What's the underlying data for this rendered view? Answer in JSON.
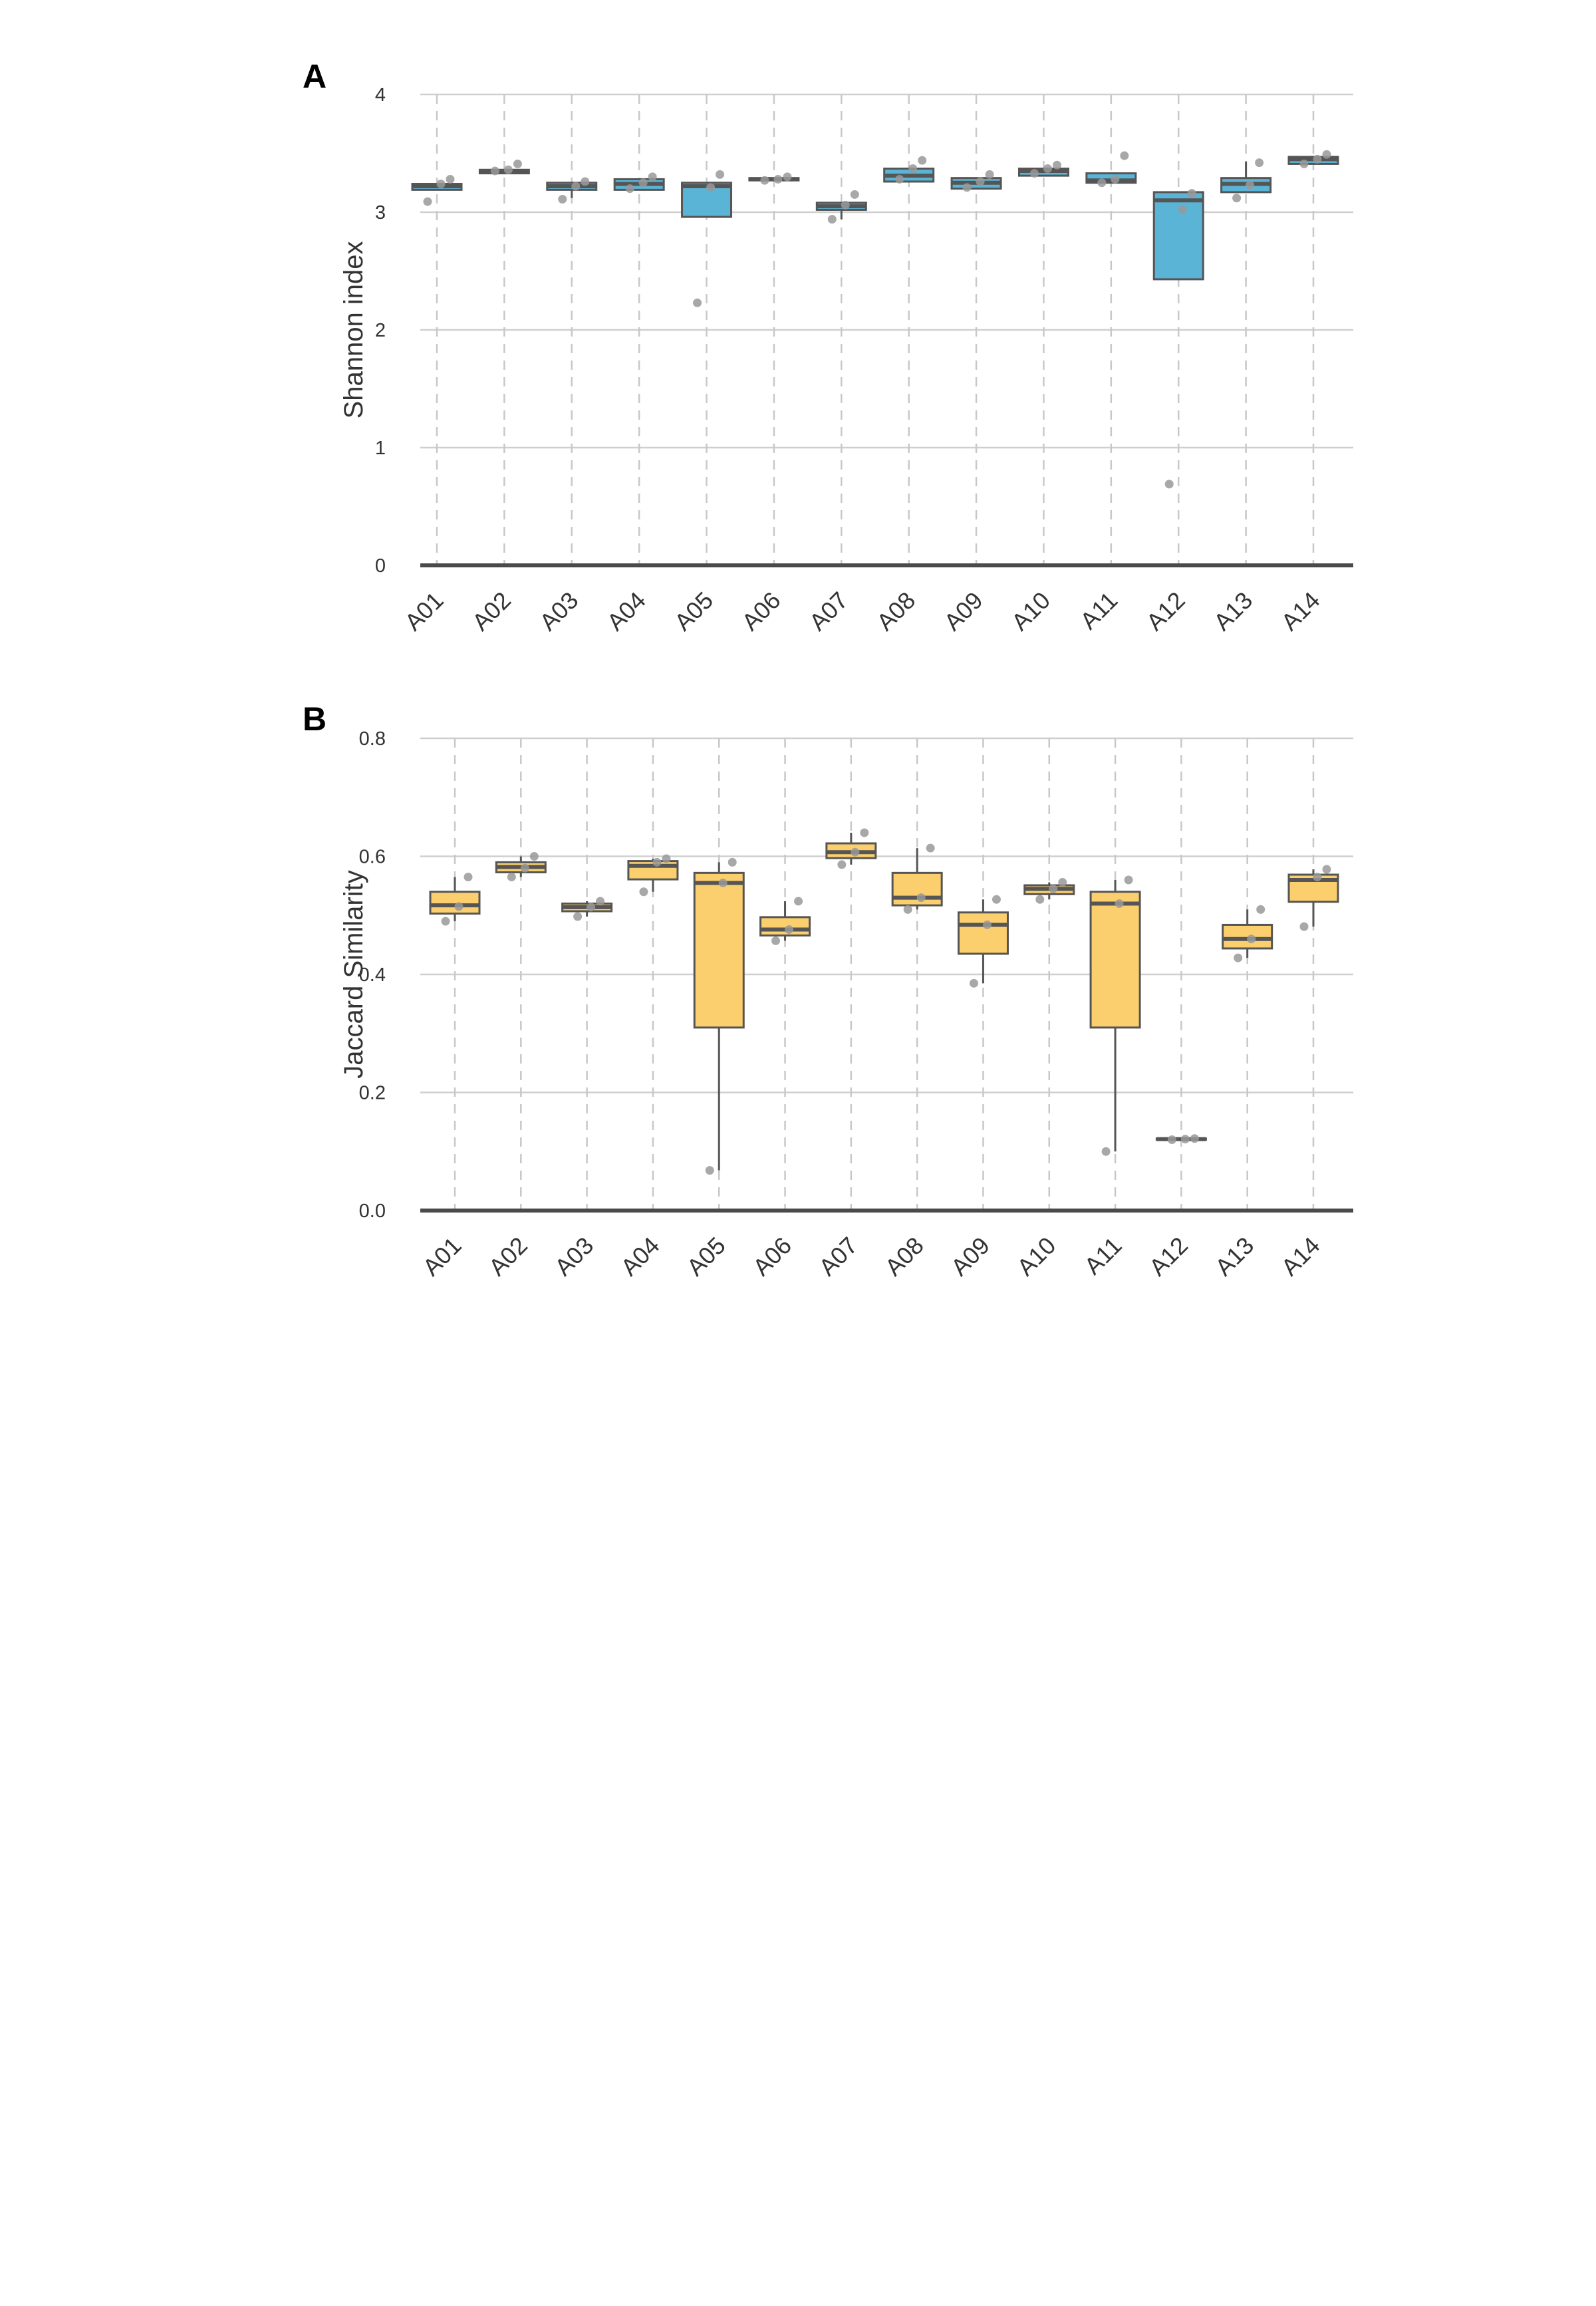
{
  "panels": [
    {
      "label": "A",
      "ylabel": "Shannon index",
      "yticks": [
        "0",
        "1",
        "2",
        "3",
        "4"
      ],
      "categories": [
        "A01",
        "A02",
        "A03",
        "A04",
        "A05",
        "A06",
        "A07",
        "A08",
        "A09",
        "A10",
        "A11",
        "A12",
        "A13",
        "A14"
      ]
    },
    {
      "label": "B",
      "ylabel": "Jaccard Similarity",
      "yticks": [
        "0.0",
        "0.2",
        "0.4",
        "0.6",
        "0.8"
      ],
      "categories": [
        "A01",
        "A02",
        "A03",
        "A04",
        "A05",
        "A06",
        "A07",
        "A08",
        "A09",
        "A10",
        "A11",
        "A12",
        "A13",
        "A14"
      ]
    }
  ],
  "chart_data": [
    {
      "type": "box",
      "panel": "A",
      "title": "",
      "xlabel": "",
      "ylabel": "Shannon index",
      "ylim": [
        0,
        4
      ],
      "grid": "on",
      "fill_color": "#5ab4d6",
      "box_edge_color": "#555555",
      "point_color": "#999999",
      "categories": [
        "A01",
        "A02",
        "A03",
        "A04",
        "A05",
        "A06",
        "A07",
        "A08",
        "A09",
        "A10",
        "A11",
        "A12",
        "A13",
        "A14"
      ],
      "boxes": [
        {
          "q1": 3.19,
          "median": 3.22,
          "q3": 3.24,
          "whisker_low": 3.19,
          "whisker_high": 3.24
        },
        {
          "q1": 3.33,
          "median": 3.35,
          "q3": 3.36,
          "whisker_low": 3.33,
          "whisker_high": 3.36
        },
        {
          "q1": 3.19,
          "median": 3.22,
          "q3": 3.25,
          "whisker_low": 3.12,
          "whisker_high": 3.25
        },
        {
          "q1": 3.19,
          "median": 3.24,
          "q3": 3.28,
          "whisker_low": 3.19,
          "whisker_high": 3.28
        },
        {
          "q1": 2.96,
          "median": 3.22,
          "q3": 3.25,
          "whisker_low": 2.96,
          "whisker_high": 3.25
        },
        {
          "q1": 3.27,
          "median": 3.28,
          "q3": 3.29,
          "whisker_low": 3.27,
          "whisker_high": 3.29
        },
        {
          "q1": 3.02,
          "median": 3.05,
          "q3": 3.08,
          "whisker_low": 2.94,
          "whisker_high": 3.08
        },
        {
          "q1": 3.26,
          "median": 3.31,
          "q3": 3.37,
          "whisker_low": 3.26,
          "whisker_high": 3.37
        },
        {
          "q1": 3.2,
          "median": 3.25,
          "q3": 3.29,
          "whisker_low": 3.2,
          "whisker_high": 3.29
        },
        {
          "q1": 3.31,
          "median": 3.35,
          "q3": 3.37,
          "whisker_low": 3.31,
          "whisker_high": 3.37
        },
        {
          "q1": 3.25,
          "median": 3.27,
          "q3": 3.33,
          "whisker_low": 3.25,
          "whisker_high": 3.33
        },
        {
          "q1": 2.43,
          "median": 3.1,
          "q3": 3.17,
          "whisker_low": 2.43,
          "whisker_high": 3.17
        },
        {
          "q1": 3.17,
          "median": 3.24,
          "q3": 3.29,
          "whisker_low": 3.17,
          "whisker_high": 3.43
        },
        {
          "q1": 3.41,
          "median": 3.45,
          "q3": 3.47,
          "whisker_low": 3.41,
          "whisker_high": 3.47
        }
      ],
      "points": [
        [
          3.09,
          3.24,
          3.28
        ],
        [
          3.35,
          3.36,
          3.41
        ],
        [
          3.11,
          3.22,
          3.26
        ],
        [
          3.2,
          3.25,
          3.3
        ],
        [
          2.23,
          3.21,
          3.32
        ],
        [
          3.27,
          3.28,
          3.3
        ],
        [
          2.94,
          3.06,
          3.15
        ],
        [
          3.28,
          3.37,
          3.44
        ],
        [
          3.21,
          3.26,
          3.32
        ],
        [
          3.33,
          3.37,
          3.4
        ],
        [
          3.25,
          3.28,
          3.48
        ],
        [
          0.69,
          3.02,
          3.16
        ],
        [
          3.12,
          3.23,
          3.42
        ],
        [
          3.41,
          3.45,
          3.49
        ]
      ]
    },
    {
      "type": "box",
      "panel": "B",
      "title": "",
      "xlabel": "",
      "ylabel": "Jaccard Similarity",
      "ylim": [
        0,
        0.8
      ],
      "grid": "on",
      "fill_color": "#fbcf6e",
      "box_edge_color": "#555555",
      "point_color": "#999999",
      "categories": [
        "A01",
        "A02",
        "A03",
        "A04",
        "A05",
        "A06",
        "A07",
        "A08",
        "A09",
        "A10",
        "A11",
        "A12",
        "A13",
        "A14"
      ],
      "boxes": [
        {
          "q1": 0.503,
          "median": 0.517,
          "q3": 0.54,
          "whisker_low": 0.49,
          "whisker_high": 0.565
        },
        {
          "q1": 0.573,
          "median": 0.582,
          "q3": 0.59,
          "whisker_low": 0.565,
          "whisker_high": 0.6
        },
        {
          "q1": 0.507,
          "median": 0.514,
          "q3": 0.52,
          "whisker_low": 0.498,
          "whisker_high": 0.524
        },
        {
          "q1": 0.561,
          "median": 0.584,
          "q3": 0.592,
          "whisker_low": 0.54,
          "whisker_high": 0.596
        },
        {
          "q1": 0.31,
          "median": 0.555,
          "q3": 0.572,
          "whisker_low": 0.068,
          "whisker_high": 0.59
        },
        {
          "q1": 0.466,
          "median": 0.476,
          "q3": 0.497,
          "whisker_low": 0.457,
          "whisker_high": 0.524
        },
        {
          "q1": 0.597,
          "median": 0.607,
          "q3": 0.622,
          "whisker_low": 0.586,
          "whisker_high": 0.64
        },
        {
          "q1": 0.517,
          "median": 0.53,
          "q3": 0.572,
          "whisker_low": 0.51,
          "whisker_high": 0.614
        },
        {
          "q1": 0.435,
          "median": 0.484,
          "q3": 0.505,
          "whisker_low": 0.385,
          "whisker_high": 0.527
        },
        {
          "q1": 0.536,
          "median": 0.545,
          "q3": 0.551,
          "whisker_low": 0.527,
          "whisker_high": 0.556
        },
        {
          "q1": 0.31,
          "median": 0.52,
          "q3": 0.54,
          "whisker_low": 0.1,
          "whisker_high": 0.56
        },
        {
          "q1": 0.12,
          "median": 0.121,
          "q3": 0.122,
          "whisker_low": 0.12,
          "whisker_high": 0.122
        },
        {
          "q1": 0.444,
          "median": 0.46,
          "q3": 0.484,
          "whisker_low": 0.428,
          "whisker_high": 0.51
        },
        {
          "q1": 0.523,
          "median": 0.56,
          "q3": 0.569,
          "whisker_low": 0.481,
          "whisker_high": 0.578
        }
      ],
      "points": [
        [
          0.49,
          0.515,
          0.565
        ],
        [
          0.565,
          0.58,
          0.6
        ],
        [
          0.498,
          0.514,
          0.524
        ],
        [
          0.54,
          0.59,
          0.596
        ],
        [
          0.068,
          0.555,
          0.59
        ],
        [
          0.457,
          0.476,
          0.524
        ],
        [
          0.586,
          0.607,
          0.64
        ],
        [
          0.51,
          0.53,
          0.614
        ],
        [
          0.385,
          0.484,
          0.527
        ],
        [
          0.527,
          0.545,
          0.556
        ],
        [
          0.1,
          0.52,
          0.56
        ],
        [
          0.12,
          0.121,
          0.122
        ],
        [
          0.428,
          0.46,
          0.51
        ],
        [
          0.481,
          0.565,
          0.578
        ]
      ]
    }
  ]
}
